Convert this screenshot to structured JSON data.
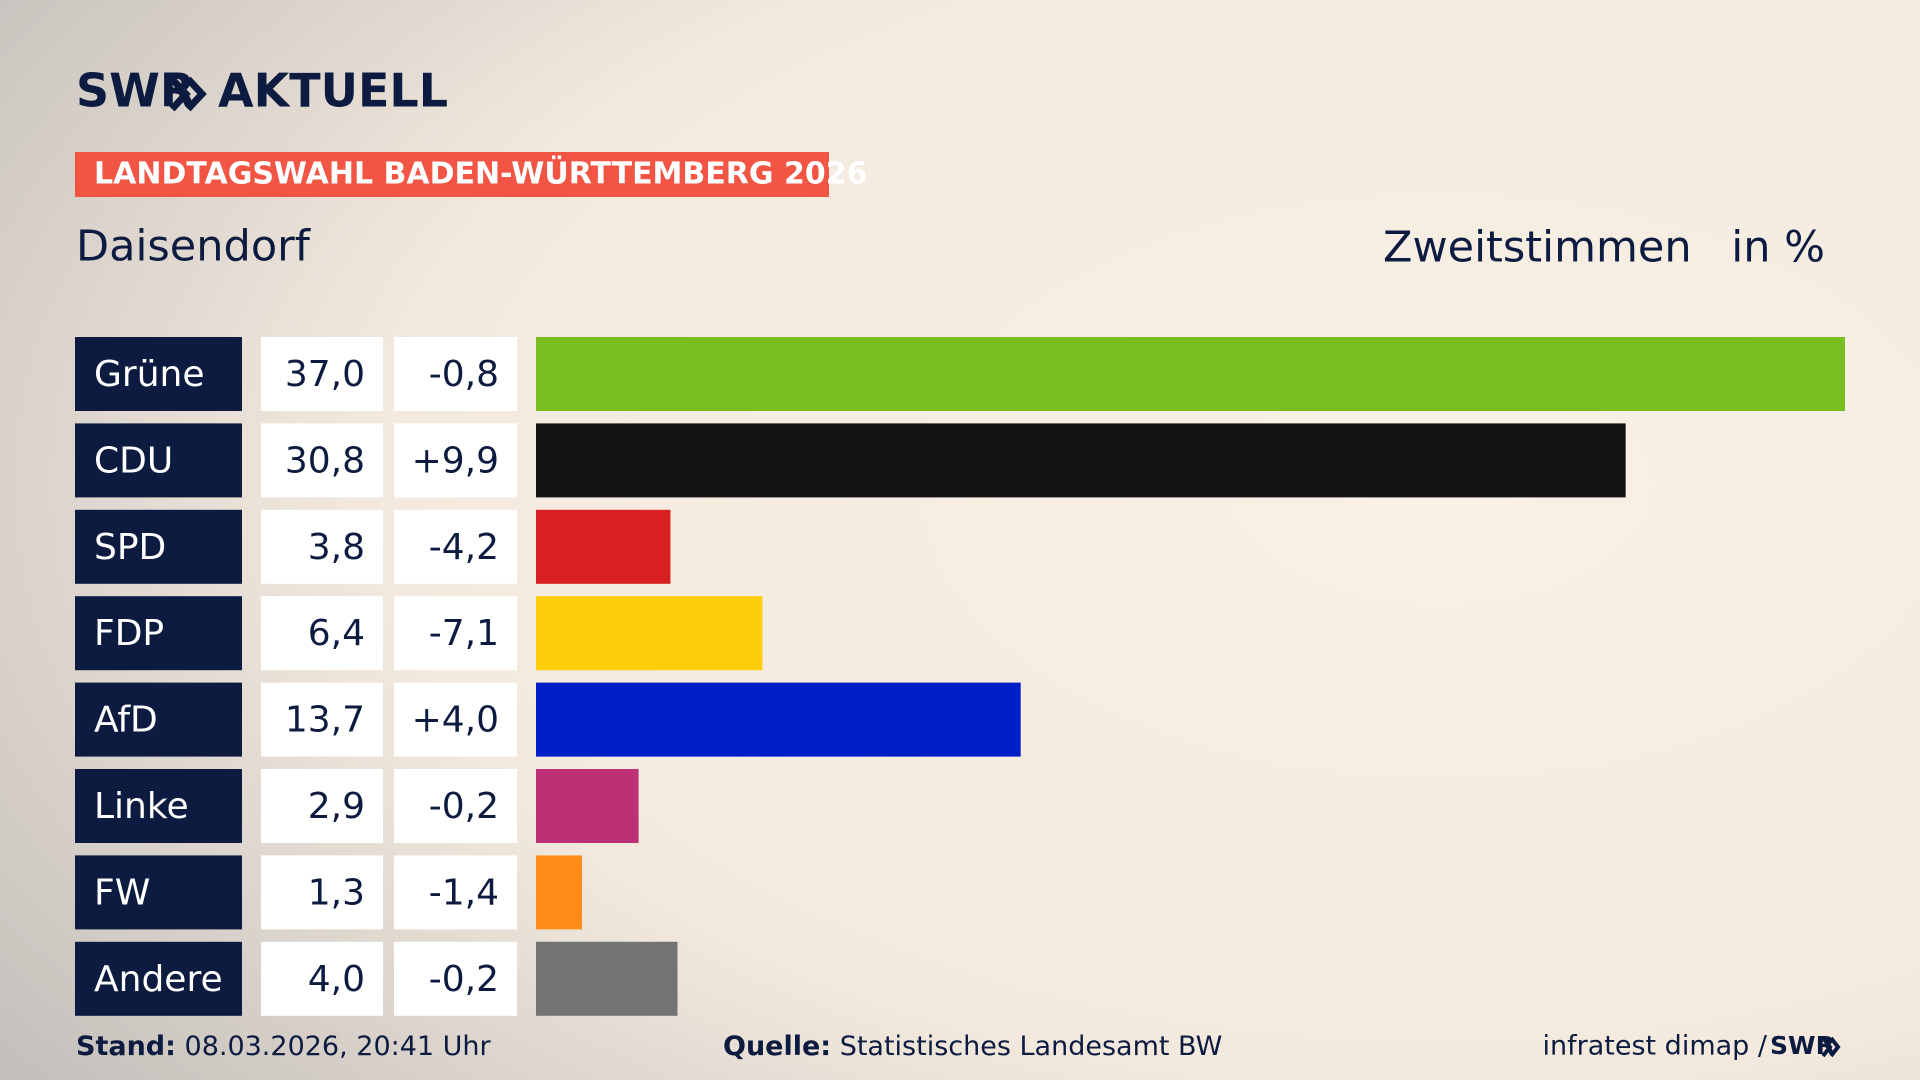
{
  "chart_data": {
    "type": "bar",
    "brand": "SWR",
    "section": "AKTUELL",
    "banner": "LANDTAGSWAHL BADEN-WÜRTTEMBERG 2026",
    "title": "Daisendorf",
    "measure": "Zweitstimmen",
    "unit": "in %",
    "categories": [
      "Grüne",
      "CDU",
      "SPD",
      "FDP",
      "AfD",
      "Linke",
      "FW",
      "Andere"
    ],
    "values": [
      37.0,
      30.8,
      3.8,
      6.4,
      13.7,
      2.9,
      1.3,
      4.0
    ],
    "value_labels": [
      "37,0",
      "30,8",
      "3,8",
      "6,4",
      "13,7",
      "2,9",
      "1,3",
      "4,0"
    ],
    "changes": [
      -0.8,
      9.9,
      -4.2,
      -7.1,
      4.0,
      -0.2,
      -1.4,
      -0.2
    ],
    "change_labels": [
      "-0,8",
      "+9,9",
      "-4,2",
      "-7,1",
      "+4,0",
      "-0,2",
      "-1,4",
      "-0,2"
    ],
    "colors": [
      "#78be20",
      "#141414",
      "#d7201f",
      "#ffcc0a",
      "#001ec8",
      "#be3075",
      "#ff8c19",
      "#737373"
    ],
    "stand_label": "Stand:",
    "stand": "08.03.2026, 20:41 Uhr",
    "source_label": "Quelle:",
    "source": "Statistisches Landesamt BW",
    "credit": "infratest dimap /",
    "credit_brand": "SWR"
  }
}
